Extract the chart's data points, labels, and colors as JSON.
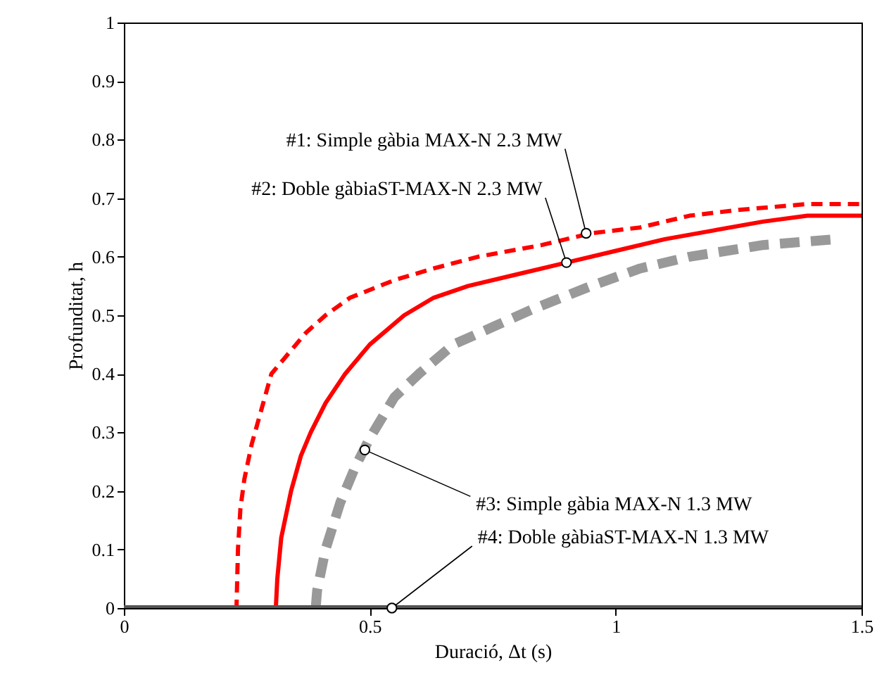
{
  "chart_data": {
    "type": "line",
    "xlabel": "Duració, Δt (s)",
    "ylabel": "Profunditat, h",
    "xlim": [
      0,
      1.5
    ],
    "xticks": [
      0,
      0.5,
      1,
      1.5
    ],
    "ylim": [
      0,
      1
    ],
    "yticks": [
      0,
      0.1,
      0.2,
      0.3,
      0.4,
      0.5,
      0.6,
      0.7,
      0.8,
      0.9,
      1
    ],
    "grid": false,
    "marker": "none",
    "series": [
      {
        "color": "#ff0000",
        "line_style": "dashed",
        "x": [
          0,
          0.229,
          0.232,
          0.237,
          0.245,
          0.26,
          0.28,
          0.3,
          0.33,
          0.37,
          0.41,
          0.46,
          0.55,
          0.63,
          0.72,
          0.85,
          0.95,
          1.05,
          1.15,
          1.25,
          1.39,
          1.5
        ],
        "values": [
          0,
          0,
          0.1,
          0.17,
          0.22,
          0.28,
          0.34,
          0.4,
          0.43,
          0.47,
          0.5,
          0.53,
          0.56,
          0.58,
          0.6,
          0.62,
          0.64,
          0.65,
          0.67,
          0.68,
          0.69,
          0.69
        ]
      },
      {
        "color": "#ff0000",
        "line_style": "solid",
        "x": [
          0,
          0.309,
          0.312,
          0.32,
          0.34,
          0.36,
          0.38,
          0.41,
          0.45,
          0.5,
          0.57,
          0.63,
          0.7,
          0.8,
          0.9,
          1.0,
          1.1,
          1.2,
          1.3,
          1.39,
          1.5
        ],
        "values": [
          0,
          0,
          0.05,
          0.12,
          0.2,
          0.26,
          0.3,
          0.35,
          0.4,
          0.45,
          0.5,
          0.53,
          0.55,
          0.57,
          0.59,
          0.61,
          0.63,
          0.645,
          0.66,
          0.67,
          0.67
        ]
      },
      {
        "color": "#999999",
        "line_style": "dashed",
        "x": [
          0.39,
          0.393,
          0.41,
          0.44,
          0.47,
          0.5,
          0.55,
          0.6,
          0.67,
          0.75,
          0.83,
          0.95,
          1.05,
          1.15,
          1.3,
          1.45
        ],
        "values": [
          0,
          0.03,
          0.1,
          0.18,
          0.24,
          0.29,
          0.36,
          0.4,
          0.45,
          0.48,
          0.51,
          0.55,
          0.58,
          0.6,
          0.62,
          0.63
        ]
      },
      {
        "color": "#555555",
        "line_style": "solid",
        "x": [
          0,
          1.5
        ],
        "values": [
          0,
          0
        ]
      }
    ],
    "annotations": [
      {
        "text": "#1: Simple gàbia MAX-N 2.3 MW",
        "x": 0.94,
        "y": 0.64
      },
      {
        "text": "#2: Doble gàbiaST-MAX-N 2.3 MW",
        "x": 0.9,
        "y": 0.59
      },
      {
        "text": "#3: Simple gàbia MAX-N 1.3 MW",
        "x": 0.49,
        "y": 0.27
      },
      {
        "text": "#4: Doble gàbiaST-MAX-N 1.3 MW",
        "x": 0.545,
        "y": 0
      }
    ]
  }
}
